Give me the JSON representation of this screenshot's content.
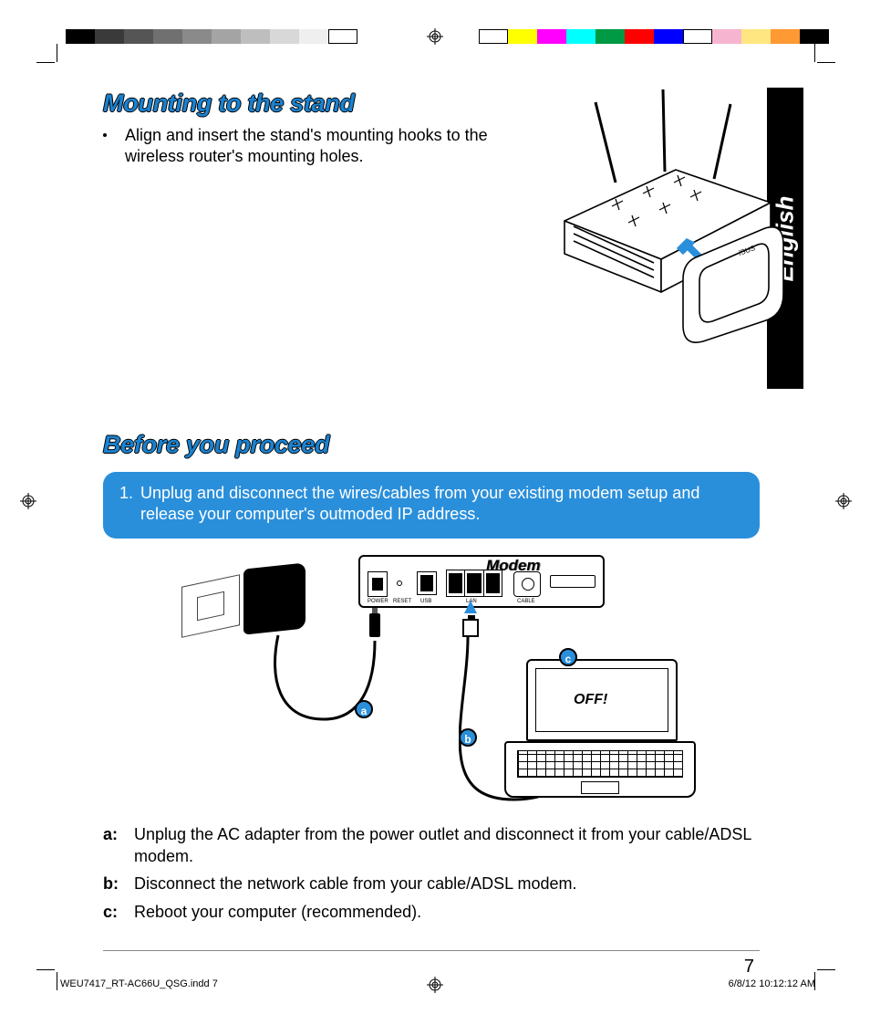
{
  "calibration": {
    "left_swatches": [
      "#000000",
      "#3a3a3a",
      "#555555",
      "#707070",
      "#8a8a8a",
      "#a4a4a4",
      "#bebebe",
      "#d8d8d8",
      "#efefef",
      "#ffffff"
    ],
    "right_swatches": [
      "#ffffff",
      "#ffff00",
      "#ff00ff",
      "#00ffff",
      "#009944",
      "#ff0000",
      "#0000ff",
      "#ffffff",
      "#f7b4d0",
      "#ffe680",
      "#ff9933",
      "#000000"
    ]
  },
  "language_tab": "English",
  "section1": {
    "title": "Mounting to the stand",
    "bullet": "Align and insert the stand's mounting hooks to the wireless router's mounting holes."
  },
  "section2": {
    "title": "Before you proceed",
    "step_number": "1.",
    "step_text": "Unplug and disconnect the wires/cables from your existing modem setup and release your computer's outmoded IP address.",
    "accent_color": "#2a8fdb"
  },
  "diagram": {
    "modem_label": "Modem",
    "port_power": "POWER",
    "port_reset": "RESET",
    "port_usb": "USB",
    "port_lan": "LAN",
    "port_cable": "CABLE",
    "laptop_off": "OFF!",
    "label_a": "a",
    "label_b": "b",
    "label_c": "c"
  },
  "legend": {
    "a_key": "a:",
    "a_text": "Unplug the AC adapter from the power outlet and disconnect it from your cable/ADSL modem.",
    "b_key": "b:",
    "b_text": "Disconnect the network cable from your cable/ADSL modem.",
    "c_key": "c:",
    "c_text": "Reboot your computer (recommended)."
  },
  "page_number": "7",
  "footer": {
    "file": "WEU7417_RT-AC66U_QSG.indd   7",
    "timestamp": "6/8/12   10:12:12 AM"
  }
}
